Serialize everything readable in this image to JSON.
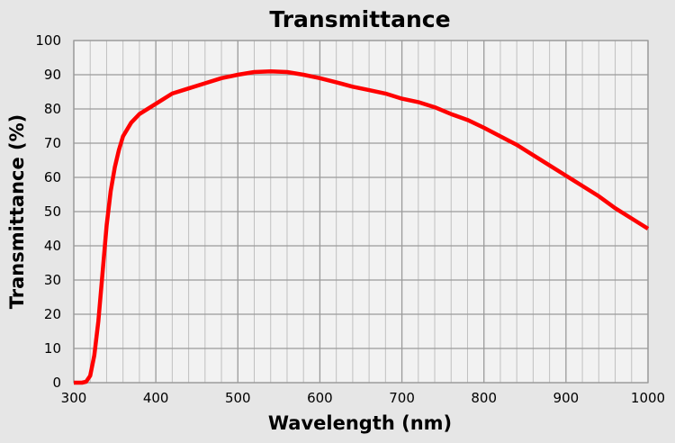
{
  "chart_data": {
    "type": "line",
    "title": "Transmittance",
    "xlabel": "Wavelength (nm)",
    "ylabel": "Transmittance (%)",
    "xlim": [
      300,
      1000
    ],
    "ylim": [
      0,
      100
    ],
    "xticks": [
      300,
      400,
      500,
      600,
      700,
      800,
      900,
      1000
    ],
    "yticks": [
      0,
      10,
      20,
      30,
      40,
      50,
      60,
      70,
      80,
      90,
      100
    ],
    "x_minor_step": 20,
    "grid": true,
    "legend": "none",
    "colors": {
      "line": "#ff0000",
      "plot_bg": "#f2f2f2",
      "page_bg": "#e6e6e6",
      "grid": "#a0a0a0"
    },
    "series": [
      {
        "x": [
          300,
          310,
          315,
          320,
          325,
          330,
          335,
          340,
          345,
          350,
          355,
          360,
          370,
          380,
          400,
          420,
          440,
          460,
          480,
          500,
          520,
          540,
          560,
          580,
          600,
          620,
          640,
          660,
          680,
          700,
          720,
          740,
          760,
          780,
          800,
          820,
          840,
          860,
          880,
          900,
          920,
          940,
          960,
          980,
          1000
        ],
        "y": [
          0,
          0,
          0.3,
          2,
          8,
          18,
          32,
          46,
          56,
          63,
          68,
          72,
          76,
          78.5,
          81.5,
          84.5,
          86,
          87.5,
          89,
          90,
          90.8,
          91,
          90.8,
          90,
          89,
          87.8,
          86.5,
          85.5,
          84.5,
          83,
          82,
          80.5,
          78.5,
          76.8,
          74.5,
          72,
          69.5,
          66.5,
          63.5,
          60.5,
          57.5,
          54.5,
          51,
          48,
          45
        ]
      }
    ]
  }
}
